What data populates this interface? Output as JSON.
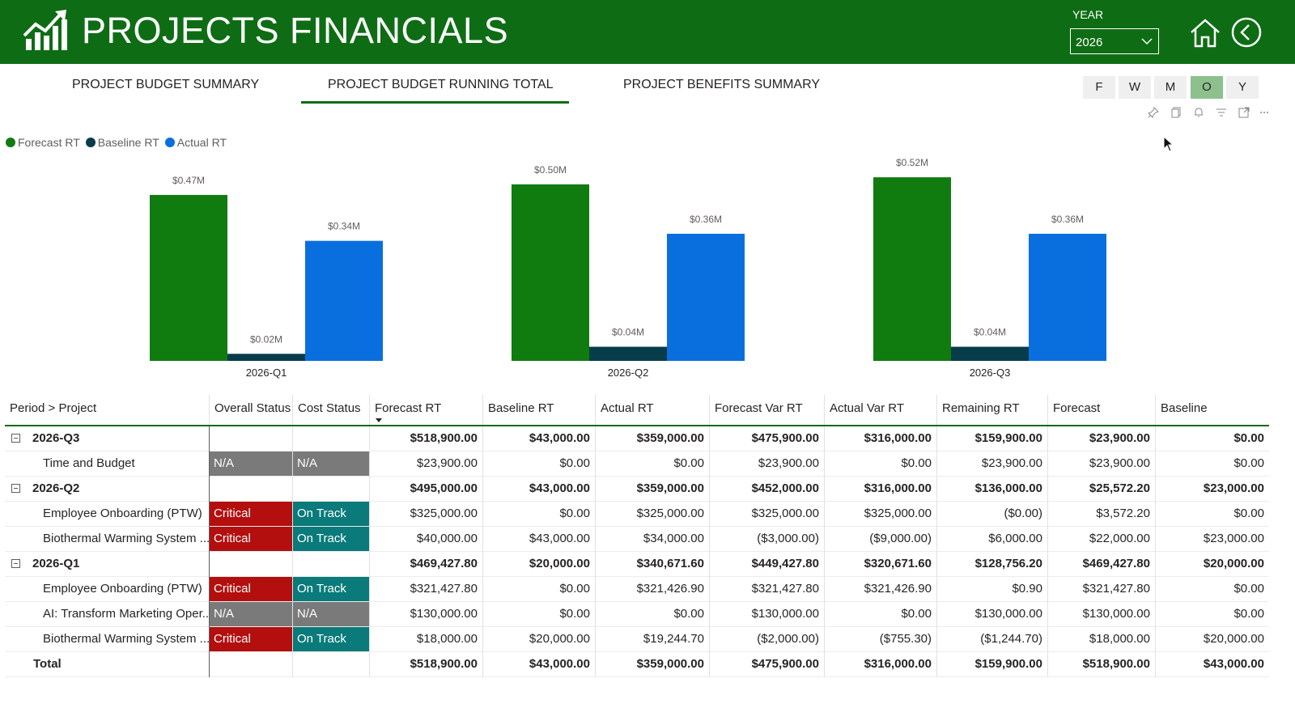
{
  "header": {
    "title": "PROJECTS FINANCIALS",
    "year_label": "YEAR",
    "year_value": "2026",
    "icons": [
      "chart-logo-icon",
      "chevron-down-icon",
      "home-icon",
      "back-arrow-icon"
    ]
  },
  "tabs": [
    {
      "label": "PROJECT BUDGET SUMMARY",
      "active": false
    },
    {
      "label": "PROJECT BUDGET RUNNING TOTAL",
      "active": true
    },
    {
      "label": "PROJECT BENEFITS SUMMARY",
      "active": false
    }
  ],
  "period_buttons": [
    {
      "label": "F",
      "selected": false
    },
    {
      "label": "W",
      "selected": false
    },
    {
      "label": "M",
      "selected": false
    },
    {
      "label": "O",
      "selected": true
    },
    {
      "label": "Y",
      "selected": false
    }
  ],
  "toolbar_icons": [
    "pin-icon",
    "copy-icon",
    "bell-icon",
    "filter-icon",
    "focus-mode-icon",
    "more-options-icon"
  ],
  "colors": {
    "brand_green": "#0e6d14",
    "forecast": "#107c10",
    "baseline": "#073c4b",
    "actual": "#0a6fde",
    "critical": "#b30f0f",
    "on_track": "#0a7a7a",
    "na": "#7a7a7a"
  },
  "chart_data": {
    "type": "bar",
    "title": "",
    "xlabel": "",
    "ylabel": "",
    "legend_position": "top-left",
    "grid": false,
    "ylim": [
      0,
      0.55
    ],
    "categories": [
      "2026-Q1",
      "2026-Q2",
      "2026-Q3"
    ],
    "series": [
      {
        "name": "Forecast RT",
        "color": "#107c10",
        "values": [
          0.47,
          0.5,
          0.52
        ],
        "labels": [
          "$0.47M",
          "$0.50M",
          "$0.52M"
        ]
      },
      {
        "name": "Baseline RT",
        "color": "#073c4b",
        "values": [
          0.02,
          0.04,
          0.04
        ],
        "labels": [
          "$0.02M",
          "$0.04M",
          "$0.04M"
        ]
      },
      {
        "name": "Actual RT",
        "color": "#0a6fde",
        "values": [
          0.34,
          0.36,
          0.36
        ],
        "labels": [
          "$0.34M",
          "$0.36M",
          "$0.36M"
        ]
      }
    ]
  },
  "table": {
    "columns": [
      "Period > Project",
      "Overall Status",
      "Cost Status",
      "Forecast RT",
      "Baseline RT",
      "Actual RT",
      "Forecast Var RT",
      "Actual Var RT",
      "Remaining RT",
      "Forecast",
      "Baseline"
    ],
    "rows": [
      {
        "type": "group",
        "name": "2026-Q3",
        "overall": "",
        "cost": "",
        "values": [
          "$518,900.00",
          "$43,000.00",
          "$359,000.00",
          "$475,900.00",
          "$316,000.00",
          "$159,900.00",
          "$23,900.00",
          "$0.00"
        ]
      },
      {
        "type": "item",
        "name": "Time and Budget",
        "overall": "N/A",
        "cost": "N/A",
        "values": [
          "$23,900.00",
          "$0.00",
          "$0.00",
          "$23,900.00",
          "$0.00",
          "$23,900.00",
          "$23,900.00",
          "$0.00"
        ]
      },
      {
        "type": "group",
        "name": "2026-Q2",
        "overall": "",
        "cost": "",
        "values": [
          "$495,000.00",
          "$43,000.00",
          "$359,000.00",
          "$452,000.00",
          "$316,000.00",
          "$136,000.00",
          "$25,572.20",
          "$23,000.00"
        ]
      },
      {
        "type": "item",
        "name": "Employee Onboarding (PTW)",
        "overall": "Critical",
        "cost": "On Track",
        "values": [
          "$325,000.00",
          "$0.00",
          "$325,000.00",
          "$325,000.00",
          "$325,000.00",
          "($0.00)",
          "$3,572.20",
          "$0.00"
        ]
      },
      {
        "type": "item",
        "name": "Biothermal Warming System ...",
        "overall": "Critical",
        "cost": "On Track",
        "values": [
          "$40,000.00",
          "$43,000.00",
          "$34,000.00",
          "($3,000.00)",
          "($9,000.00)",
          "$6,000.00",
          "$22,000.00",
          "$23,000.00"
        ]
      },
      {
        "type": "group",
        "name": "2026-Q1",
        "overall": "",
        "cost": "",
        "values": [
          "$469,427.80",
          "$20,000.00",
          "$340,671.60",
          "$449,427.80",
          "$320,671.60",
          "$128,756.20",
          "$469,427.80",
          "$20,000.00"
        ]
      },
      {
        "type": "item",
        "name": "Employee Onboarding (PTW)",
        "overall": "Critical",
        "cost": "On Track",
        "values": [
          "$321,427.80",
          "$0.00",
          "$321,426.90",
          "$321,427.80",
          "$321,426.90",
          "$0.90",
          "$321,427.80",
          "$0.00"
        ]
      },
      {
        "type": "item",
        "name": "AI: Transform Marketing Oper...",
        "overall": "N/A",
        "cost": "N/A",
        "values": [
          "$130,000.00",
          "$0.00",
          "$0.00",
          "$130,000.00",
          "$0.00",
          "$130,000.00",
          "$130,000.00",
          "$0.00"
        ]
      },
      {
        "type": "item",
        "name": "Biothermal Warming System ...",
        "overall": "Critical",
        "cost": "On Track",
        "values": [
          "$18,000.00",
          "$20,000.00",
          "$19,244.70",
          "($2,000.00)",
          "($755.30)",
          "($1,244.70)",
          "$18,000.00",
          "$20,000.00"
        ]
      },
      {
        "type": "total",
        "name": "Total",
        "overall": "",
        "cost": "",
        "values": [
          "$518,900.00",
          "$43,000.00",
          "$359,000.00",
          "$475,900.00",
          "$316,000.00",
          "$159,900.00",
          "$518,900.00",
          "$43,000.00"
        ]
      }
    ]
  }
}
